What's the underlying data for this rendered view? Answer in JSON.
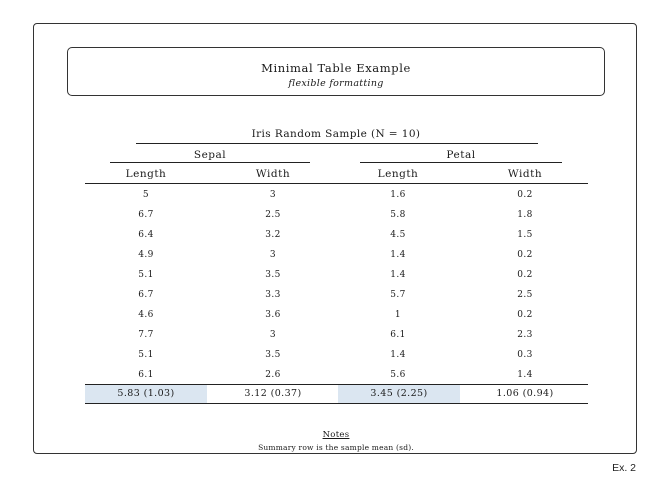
{
  "header": {
    "title": "Minimal Table Example",
    "subtitle": "flexible formatting"
  },
  "table": {
    "caption": "Iris Random Sample (N = 10)",
    "groups": [
      "Sepal",
      "Petal"
    ],
    "columns": [
      "Length",
      "Width",
      "Length",
      "Width"
    ],
    "rows": [
      [
        "5",
        "3",
        "1.6",
        "0.2"
      ],
      [
        "6.7",
        "2.5",
        "5.8",
        "1.8"
      ],
      [
        "6.4",
        "3.2",
        "4.5",
        "1.5"
      ],
      [
        "4.9",
        "3",
        "1.4",
        "0.2"
      ],
      [
        "5.1",
        "3.5",
        "1.4",
        "0.2"
      ],
      [
        "6.7",
        "3.3",
        "5.7",
        "2.5"
      ],
      [
        "4.6",
        "3.6",
        "1",
        "0.2"
      ],
      [
        "7.7",
        "3",
        "6.1",
        "2.3"
      ],
      [
        "5.1",
        "3.5",
        "1.4",
        "0.3"
      ],
      [
        "6.1",
        "2.6",
        "5.6",
        "1.4"
      ]
    ],
    "summary": [
      "5.83 (1.03)",
      "3.12 (0.37)",
      "3.45 (2.25)",
      "1.06 (0.94)"
    ],
    "summary_highlight_color": "#dbe6f1"
  },
  "notes": {
    "title": "Notes",
    "text": "Summary row is the sample mean (sd)."
  },
  "footer": {
    "label": "Ex. 2"
  }
}
